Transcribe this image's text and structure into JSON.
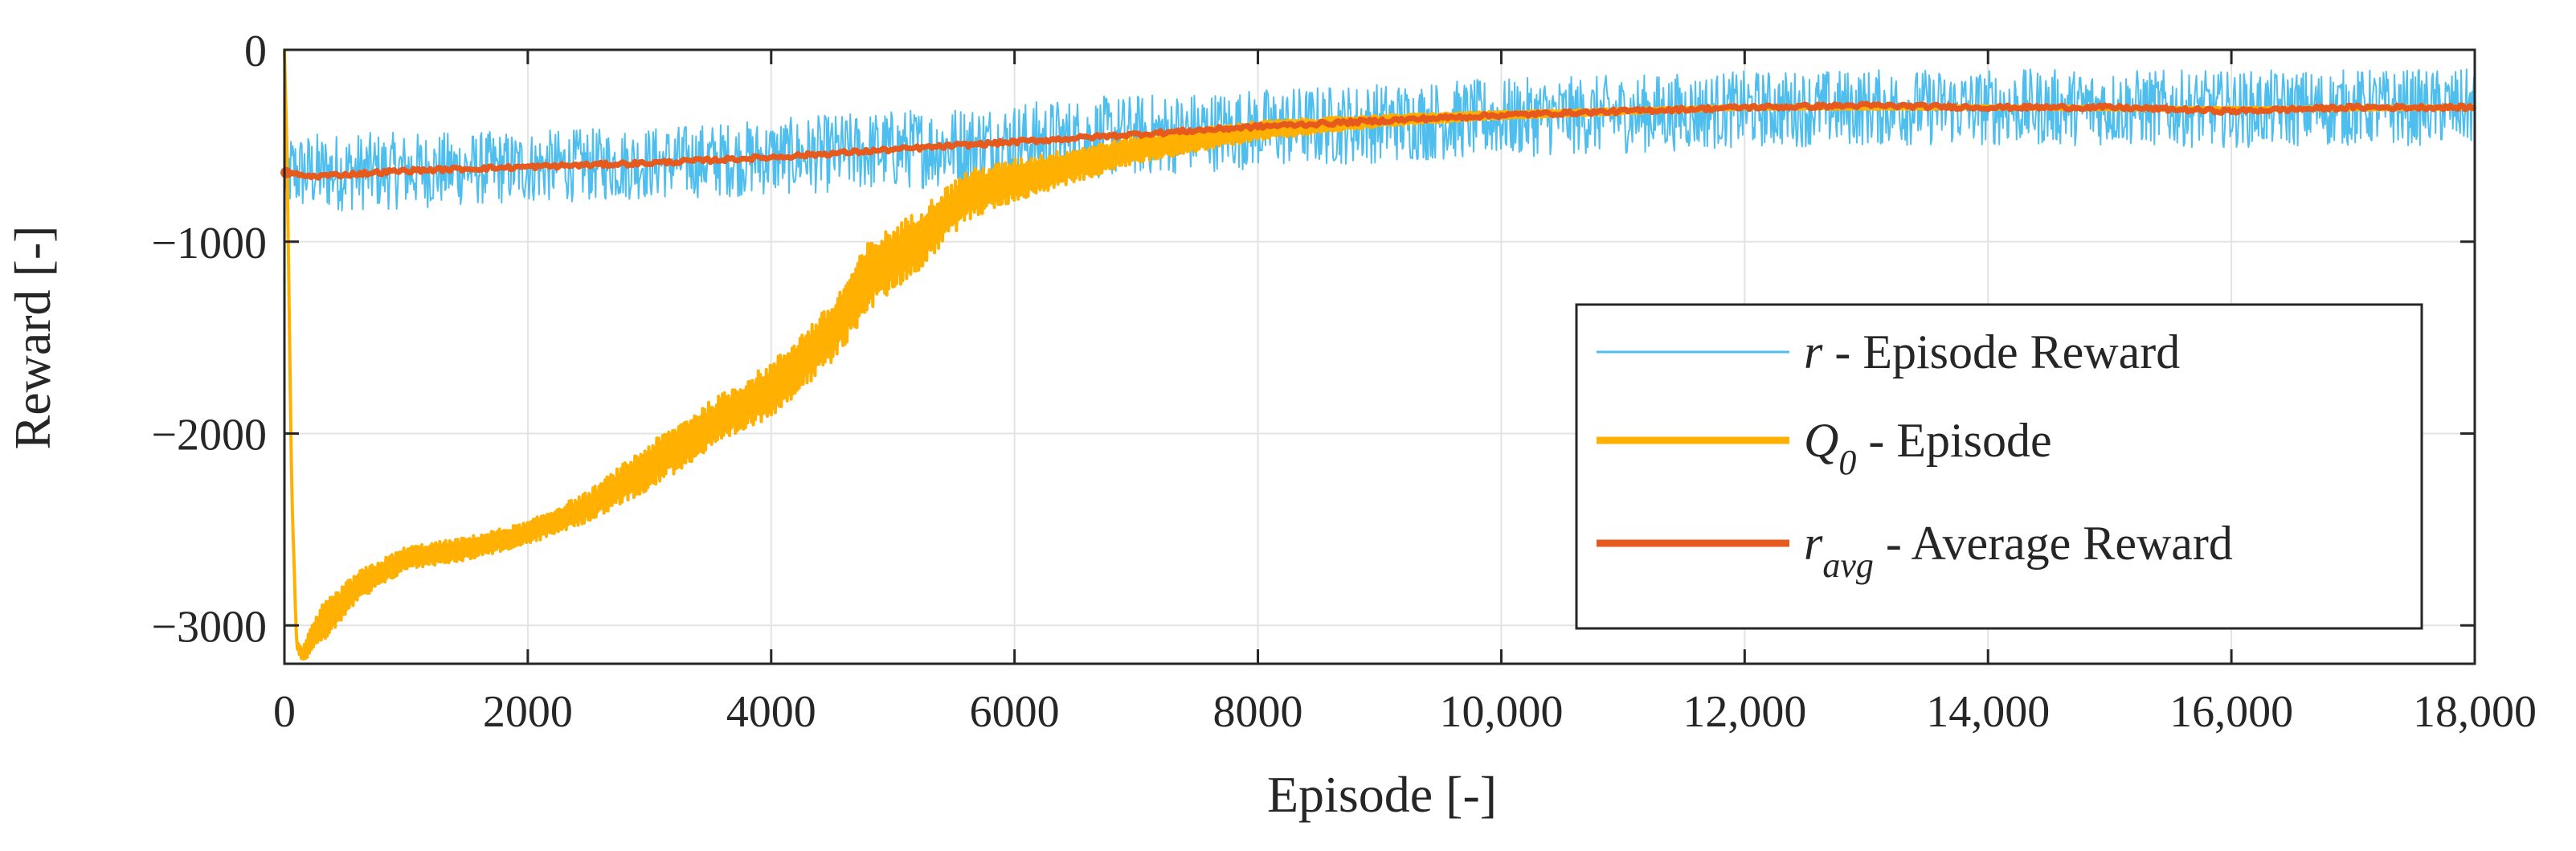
{
  "chart_data": {
    "type": "line",
    "title": "",
    "xlabel": "Episode [-]",
    "ylabel": "Reward [-]",
    "xlim": [
      0,
      18000
    ],
    "ylim": [
      -3200,
      0
    ],
    "x_ticks": [
      0,
      2000,
      4000,
      6000,
      8000,
      10000,
      12000,
      14000,
      16000,
      18000
    ],
    "x_tick_labels": [
      "0",
      "2000",
      "4000",
      "6000",
      "8000",
      "10,000",
      "12,000",
      "14,000",
      "16,000",
      "18,000"
    ],
    "y_ticks": [
      0,
      -1000,
      -2000,
      -3000
    ],
    "y_tick_labels": [
      "0",
      "−1000",
      "−2000",
      "−3000"
    ],
    "grid": true,
    "legend_position": "bottom-right",
    "series": [
      {
        "name": "r - Episode Reward",
        "legend_main": "r",
        "legend_sub": "",
        "legend_rest": " - Episode Reward",
        "color": "#4DBEEE",
        "x": [
          0,
          1000,
          2000,
          3000,
          4000,
          5000,
          6000,
          7000,
          8000,
          9000,
          10000,
          11000,
          12000,
          13000,
          14000,
          15000,
          16000,
          17000,
          18000
        ],
        "y": [
          -640,
          -630,
          -610,
          -590,
          -560,
          -520,
          -480,
          -440,
          -400,
          -370,
          -340,
          -320,
          -300,
          -290,
          -290,
          -290,
          -300,
          -290,
          -290
        ],
        "spread": [
          [
            -850,
            -430
          ],
          [
            -830,
            -430
          ],
          [
            -800,
            -420
          ],
          [
            -780,
            -400
          ],
          [
            -760,
            -360
          ],
          [
            -730,
            -310
          ],
          [
            -700,
            -270
          ],
          [
            -660,
            -230
          ],
          [
            -620,
            -200
          ],
          [
            -590,
            -170
          ],
          [
            -560,
            -150
          ],
          [
            -540,
            -130
          ],
          [
            -510,
            -110
          ],
          [
            -500,
            -100
          ],
          [
            -500,
            -100
          ],
          [
            -500,
            -100
          ],
          [
            -510,
            -110
          ],
          [
            -500,
            -100
          ],
          [
            -500,
            -100
          ]
        ]
      },
      {
        "name": "Q0 - Episode",
        "legend_main": "Q",
        "legend_sub": "0",
        "legend_rest": " - Episode",
        "color": "#FFB000",
        "x": [
          0,
          20,
          60,
          100,
          150,
          300,
          600,
          1000,
          1500,
          2000,
          2500,
          3000,
          3500,
          4000,
          4500,
          4800,
          5200,
          5600,
          6000,
          6500,
          7000,
          8000,
          9000,
          10000,
          11000,
          12000,
          14000,
          16000,
          18000
        ],
        "y": [
          0,
          -500,
          -2300,
          -3100,
          -3150,
          -3000,
          -2800,
          -2650,
          -2600,
          -2520,
          -2380,
          -2170,
          -1960,
          -1770,
          -1480,
          -1180,
          -1000,
          -760,
          -680,
          -600,
          -520,
          -420,
          -370,
          -340,
          -320,
          -300,
          -300,
          -310,
          -300
        ],
        "band": [
          0,
          0,
          0,
          20,
          40,
          100,
          80,
          60,
          60,
          60,
          80,
          120,
          130,
          140,
          160,
          180,
          160,
          130,
          110,
          90,
          70,
          50,
          30,
          20,
          15,
          10,
          10,
          10,
          10
        ]
      },
      {
        "name": "r_avg - Average Reward",
        "legend_main": "r",
        "legend_sub": "avg",
        "legend_rest": " - Average Reward",
        "color": "#E65A1E",
        "x": [
          0,
          200,
          500,
          1000,
          2000,
          3000,
          4000,
          5000,
          6000,
          7000,
          8000,
          9000,
          10000,
          11000,
          12000,
          13000,
          14000,
          15000,
          16000,
          17000,
          18000
        ],
        "y": [
          -640,
          -660,
          -650,
          -630,
          -610,
          -590,
          -560,
          -520,
          -480,
          -440,
          -400,
          -370,
          -340,
          -320,
          -300,
          -290,
          -300,
          -300,
          -320,
          -300,
          -300
        ]
      }
    ]
  }
}
